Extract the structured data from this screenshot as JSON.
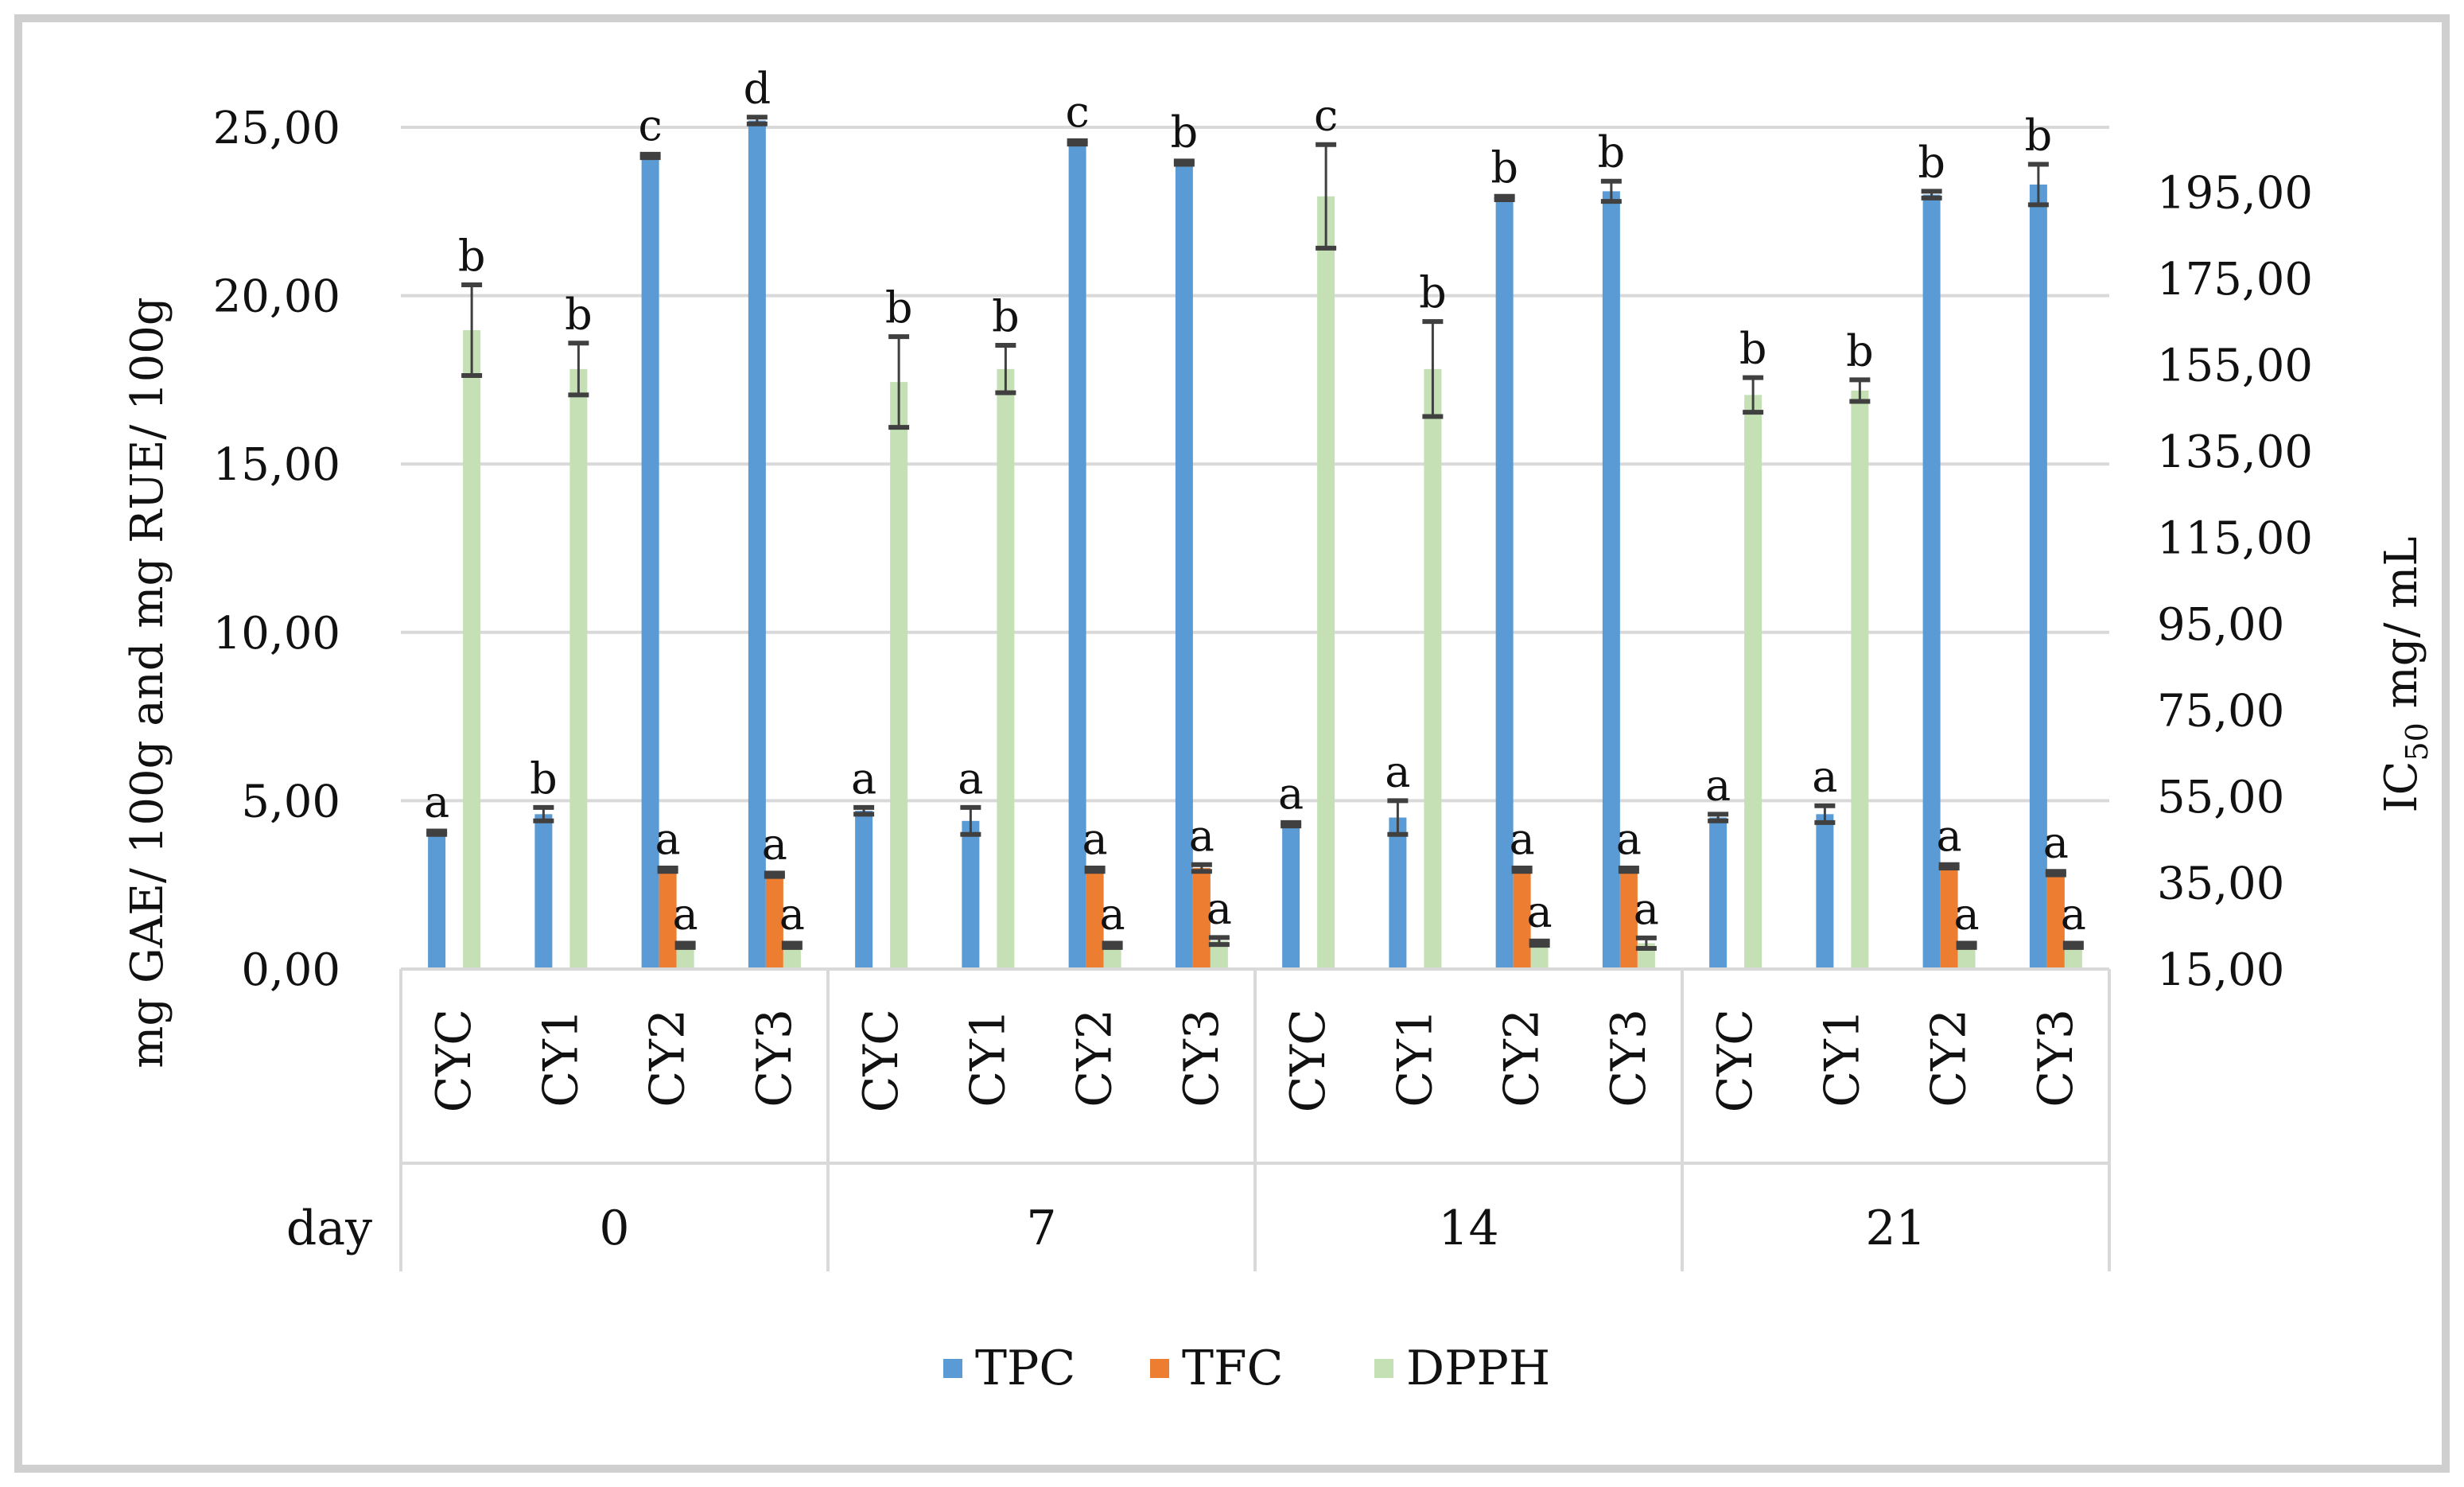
{
  "chart_data": {
    "type": "bar",
    "title": "",
    "ylabel_left": "mg GAE/ 100g and mg RUE/ 100g",
    "ylabel_right_main": "IC",
    "ylabel_right_sub": "50",
    "ylabel_right_unit": "mg/ mL",
    "ylim_left": [
      0,
      25
    ],
    "ylim_right": [
      15,
      210
    ],
    "yticks_left": [
      "0,00",
      "5,00",
      "10,00",
      "15,00",
      "20,00",
      "25,00"
    ],
    "yticks_right": [
      "15,00",
      "35,00",
      "55,00",
      "75,00",
      "95,00",
      "115,00",
      "135,00",
      "155,00",
      "175,00",
      "195,00"
    ],
    "grid": true,
    "legend_position": "bottom",
    "xaxis_title": "day",
    "groups": [
      "0",
      "7",
      "14",
      "21"
    ],
    "categories": [
      "CYC",
      "CY1",
      "CY2",
      "CY3"
    ],
    "series": [
      {
        "name": "TPC",
        "axis": "left",
        "color": "#5b9bd5",
        "values": [
          [
            4.05,
            4.6,
            24.15,
            25.2
          ],
          [
            4.7,
            4.4,
            24.55,
            23.95
          ],
          [
            4.3,
            4.5,
            22.9,
            23.1
          ],
          [
            4.5,
            4.6,
            23.0,
            23.3
          ]
        ],
        "errors": [
          [
            0.05,
            0.2,
            0.05,
            0.1
          ],
          [
            0.1,
            0.4,
            0.05,
            0.05
          ],
          [
            0.05,
            0.5,
            0.05,
            0.3
          ],
          [
            0.1,
            0.25,
            0.1,
            0.6
          ]
        ],
        "letters": [
          [
            "a",
            "b",
            "c",
            "d"
          ],
          [
            "a",
            "a",
            "c",
            "b"
          ],
          [
            "a",
            "a",
            "b",
            "b"
          ],
          [
            "a",
            "a",
            "b",
            "b"
          ]
        ]
      },
      {
        "name": "TFC",
        "axis": "left",
        "color": "#ed7d31",
        "values": [
          [
            0,
            0,
            2.95,
            2.8
          ],
          [
            0,
            0,
            2.95,
            3.0
          ],
          [
            0,
            0,
            2.95,
            2.95
          ],
          [
            0,
            0,
            3.05,
            2.85
          ]
        ],
        "errors": [
          [
            0,
            0,
            0.05,
            0.05
          ],
          [
            0,
            0,
            0.05,
            0.1
          ],
          [
            0,
            0,
            0.05,
            0.05
          ],
          [
            0,
            0,
            0.05,
            0.05
          ]
        ],
        "letters": [
          [
            "",
            "",
            "a",
            "a"
          ],
          [
            "",
            "",
            "a",
            "a"
          ],
          [
            "",
            "",
            "a",
            "a"
          ],
          [
            "",
            "",
            "a",
            "a"
          ]
        ]
      },
      {
        "name": "DPPH",
        "axis": "right",
        "color": "#c5e0b4",
        "values": [
          [
            163,
            154,
            20.5,
            20.5
          ],
          [
            151,
            154,
            20.5,
            21.5
          ],
          [
            194,
            154,
            21,
            21
          ],
          [
            148,
            149,
            20.5,
            20.5
          ]
        ],
        "errors": [
          [
            10.5,
            6,
            0.5,
            0.5
          ],
          [
            10.5,
            5.5,
            0.5,
            0.8
          ],
          [
            12,
            11,
            0.5,
            1.2
          ],
          [
            4,
            2.5,
            0.5,
            0.5
          ]
        ],
        "letters": [
          [
            "b",
            "b",
            "a",
            "a"
          ],
          [
            "b",
            "b",
            "a",
            "a"
          ],
          [
            "c",
            "b",
            "a",
            "a"
          ],
          [
            "b",
            "b",
            "a",
            "a"
          ]
        ]
      }
    ]
  }
}
